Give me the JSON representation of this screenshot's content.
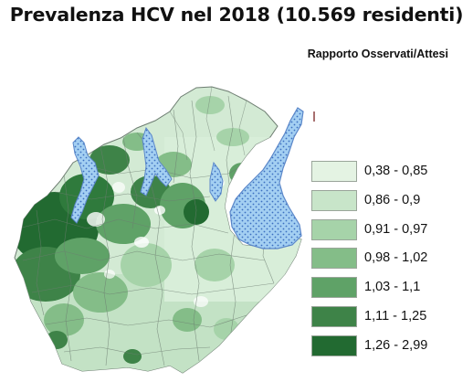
{
  "title": "Prevalenza HCV nel 2018 (10.569 residenti)",
  "subtitle": "Rapporto Osservati/Attesi",
  "legend": {
    "items": [
      {
        "label": "0,38 - 0,85",
        "color": "#e4f3e3"
      },
      {
        "label": "0,86 - 0,9",
        "color": "#c8e5c9"
      },
      {
        "label": "0,91 - 0,97",
        "color": "#a6d3a9"
      },
      {
        "label": "0,98 - 1,02",
        "color": "#84bd88"
      },
      {
        "label": "1,03 - 1,1",
        "color": "#5fa267"
      },
      {
        "label": "1,11 - 1,25",
        "color": "#3e8348"
      },
      {
        "label": "1,26 - 2,99",
        "color": "#226a31"
      }
    ]
  },
  "colors": {
    "lake_fill": "#a3cff2",
    "lake_border": "#5b87c9",
    "region_base": "#cfe8d1",
    "boundary": "#6d7d71"
  }
}
